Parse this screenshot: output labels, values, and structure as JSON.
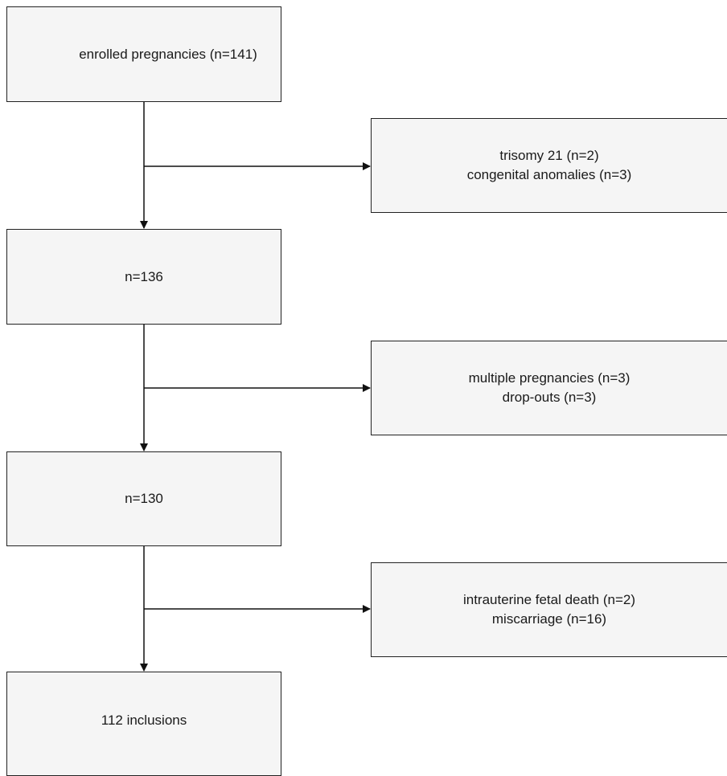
{
  "flowchart": {
    "main_steps": [
      {
        "lines": [
          "enrolled pregnancies (n=141)"
        ]
      },
      {
        "lines": [
          "n=136"
        ]
      },
      {
        "lines": [
          "n=130"
        ]
      },
      {
        "lines": [
          "112 inclusions"
        ]
      }
    ],
    "exclusions": [
      {
        "lines": [
          "trisomy 21 (n=2)",
          "congenital anomalies (n=3)"
        ]
      },
      {
        "lines": [
          "multiple pregnancies (n=3)",
          "drop-outs (n=3)"
        ]
      },
      {
        "lines": [
          "intrauterine fetal death (n=2)",
          "miscarriage (n=16)"
        ]
      }
    ],
    "colors": {
      "line": "#111111",
      "box_border": "#222222",
      "box_fill": "#f5f5f5"
    }
  }
}
